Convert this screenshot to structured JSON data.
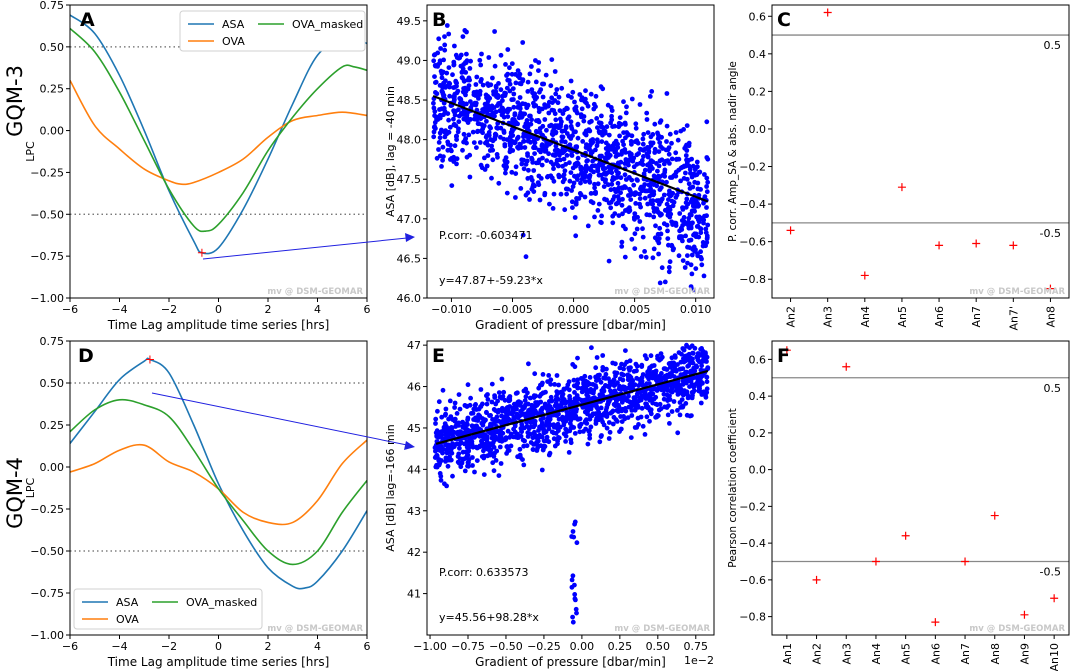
{
  "row_labels": [
    "GQM-3",
    "GQM-4"
  ],
  "watermark": "mv @ DSM-GEOMAR",
  "chart_data": [
    {
      "panel": "A",
      "type": "line",
      "xlabel": "Time Lag amplitude time series [hrs]",
      "ylabel": "LPC",
      "xlim": [
        -6,
        6
      ],
      "ylim": [
        -1.0,
        0.75
      ],
      "xticks": [
        -6,
        -4,
        -2,
        0,
        2,
        4,
        6
      ],
      "xtick_labels": [
        "−6",
        "−4",
        "−2",
        "0",
        "2",
        "4",
        "6"
      ],
      "yticks": [
        -1.0,
        -0.75,
        -0.5,
        -0.25,
        0.0,
        0.25,
        0.5,
        0.75
      ],
      "ytick_labels": [
        "−1.00",
        "−0.75",
        "−0.50",
        "−0.25",
        "0.00",
        "0.25",
        "0.50",
        "0.75"
      ],
      "hlines": [
        0.5,
        -0.5
      ],
      "legend": {
        "position": "top-right",
        "ncol": 2
      },
      "marker": {
        "x": -0.67,
        "y": -0.73
      },
      "series": [
        {
          "name": "ASA",
          "color": "#1f77b4",
          "x": [
            -6,
            -5,
            -4,
            -3,
            -2,
            -1,
            -0.67,
            0,
            1,
            2,
            3,
            4,
            5,
            5.5,
            6
          ],
          "y": [
            0.69,
            0.58,
            0.33,
            0.0,
            -0.36,
            -0.66,
            -0.73,
            -0.7,
            -0.47,
            -0.17,
            0.16,
            0.45,
            0.54,
            0.55,
            0.52
          ]
        },
        {
          "name": "OVA",
          "color": "#ff7f0e",
          "x": [
            -6,
            -5,
            -4,
            -3,
            -2,
            -1.5,
            -1,
            0,
            1,
            2,
            3,
            4,
            5,
            6
          ],
          "y": [
            0.3,
            0.03,
            -0.11,
            -0.23,
            -0.3,
            -0.32,
            -0.31,
            -0.25,
            -0.17,
            -0.04,
            0.06,
            0.09,
            0.11,
            0.09
          ]
        },
        {
          "name": "OVA_masked",
          "color": "#2ca02c",
          "x": [
            -6,
            -5,
            -4,
            -3,
            -2,
            -1,
            -0.5,
            0,
            1,
            2,
            3,
            4,
            5,
            5.5,
            6
          ],
          "y": [
            0.61,
            0.47,
            0.23,
            -0.06,
            -0.35,
            -0.57,
            -0.6,
            -0.56,
            -0.37,
            -0.12,
            0.08,
            0.25,
            0.38,
            0.38,
            0.36
          ]
        }
      ]
    },
    {
      "panel": "B",
      "type": "scatter",
      "xlabel": "Gradient of pressure [dbar/min]",
      "ylabel": "ASA [dB], lag = -40 min",
      "xlim": [
        -0.012,
        0.0115
      ],
      "ylim": [
        46.0,
        49.7
      ],
      "xticks": [
        -0.01,
        -0.005,
        0.0,
        0.005,
        0.01
      ],
      "xtick_labels": [
        "−0.010",
        "−0.005",
        "0.000",
        "0.005",
        "0.010"
      ],
      "yticks": [
        46.0,
        46.5,
        47.0,
        47.5,
        48.0,
        48.5,
        49.0,
        49.5
      ],
      "ytick_labels": [
        "46.0",
        "46.5",
        "47.0",
        "47.5",
        "48.0",
        "48.5",
        "49.0",
        "49.5"
      ],
      "point_color": "#0000ff",
      "fit": {
        "intercept": 47.87,
        "slope": -59.23,
        "x": [
          -0.0115,
          0.011
        ],
        "color": "#000000"
      },
      "annotations": [
        "P.corr: -0.603471",
        "y=47.87+-59.23*x"
      ]
    },
    {
      "panel": "C",
      "type": "scatter",
      "xlabel": "",
      "ylabel": "P. corr. Amp_SA & abs. nadir angle",
      "categories": [
        "An2",
        "An3",
        "An4",
        "An5",
        "An6",
        "An7",
        "An7'",
        "An8"
      ],
      "values": [
        -0.54,
        0.62,
        -0.78,
        -0.31,
        -0.62,
        -0.61,
        -0.62,
        -0.85
      ],
      "ylim": [
        -0.9,
        0.66
      ],
      "yticks": [
        -0.8,
        -0.6,
        -0.4,
        -0.2,
        0.0,
        0.2,
        0.4,
        0.6
      ],
      "ytick_labels": [
        "−0.8",
        "−0.6",
        "−0.4",
        "−0.2",
        "0.0",
        "0.2",
        "0.4",
        "0.6"
      ],
      "hlines": [
        0.5,
        -0.5
      ],
      "hline_labels": [
        "0.5",
        "-0.5"
      ],
      "marker_color": "#ff0000"
    },
    {
      "panel": "D",
      "type": "line",
      "xlabel": "Time Lag amplitude time series [hrs]",
      "ylabel": "LPC",
      "xlim": [
        -6,
        6
      ],
      "ylim": [
        -1.0,
        0.75
      ],
      "xticks": [
        -6,
        -4,
        -2,
        0,
        2,
        4,
        6
      ],
      "xtick_labels": [
        "−6",
        "−4",
        "−2",
        "0",
        "2",
        "4",
        "6"
      ],
      "yticks": [
        -1.0,
        -0.75,
        -0.5,
        -0.25,
        0.0,
        0.25,
        0.5,
        0.75
      ],
      "ytick_labels": [
        "−1.00",
        "−0.75",
        "−0.50",
        "−0.25",
        "0.00",
        "0.25",
        "0.50",
        "0.75"
      ],
      "hlines": [
        0.5,
        -0.5
      ],
      "legend": {
        "position": "bottom-left",
        "ncol": 2
      },
      "marker": {
        "x": -2.77,
        "y": 0.64
      },
      "series": [
        {
          "name": "ASA",
          "color": "#1f77b4",
          "x": [
            -6,
            -5,
            -4,
            -3,
            -2.77,
            -2,
            -1,
            0,
            1,
            2,
            3,
            3.5,
            4,
            5,
            6
          ],
          "y": [
            0.14,
            0.33,
            0.52,
            0.63,
            0.64,
            0.56,
            0.25,
            -0.1,
            -0.38,
            -0.6,
            -0.71,
            -0.72,
            -0.68,
            -0.5,
            -0.26
          ]
        },
        {
          "name": "OVA",
          "color": "#ff7f0e",
          "x": [
            -6,
            -5,
            -4,
            -3,
            -2,
            -1,
            0,
            1,
            2,
            3,
            4,
            5,
            6
          ],
          "y": [
            -0.03,
            0.02,
            0.1,
            0.13,
            0.03,
            -0.03,
            -0.13,
            -0.27,
            -0.33,
            -0.33,
            -0.2,
            0.02,
            0.16
          ]
        },
        {
          "name": "OVA_masked",
          "color": "#2ca02c",
          "x": [
            -6,
            -5,
            -4,
            -3,
            -2,
            -1,
            0,
            1,
            2,
            3,
            4,
            5,
            6
          ],
          "y": [
            0.21,
            0.34,
            0.4,
            0.37,
            0.3,
            0.1,
            -0.13,
            -0.32,
            -0.5,
            -0.58,
            -0.5,
            -0.27,
            -0.08
          ]
        }
      ]
    },
    {
      "panel": "E",
      "type": "scatter",
      "xlabel": "Gradient of pressure [dbar/min]",
      "ylabel": "ASA [dB] lag=-166 min",
      "x_offset_label": "1e−2",
      "xlim": [
        -1.02,
        0.87
      ],
      "ylim": [
        40.0,
        47.1
      ],
      "xticks": [
        -1.0,
        -0.75,
        -0.5,
        -0.25,
        0.0,
        0.25,
        0.5,
        0.75
      ],
      "xtick_labels": [
        "−1.00",
        "−0.75",
        "−0.50",
        "−0.25",
        "0.00",
        "0.25",
        "0.50",
        "0.75"
      ],
      "yticks": [
        41,
        42,
        43,
        44,
        45,
        46,
        47
      ],
      "ytick_labels": [
        "41",
        "42",
        "43",
        "44",
        "45",
        "46",
        "47"
      ],
      "point_color": "#0000ff",
      "fit": {
        "intercept": 45.56,
        "slope": 98.28,
        "x_scale": 0.01,
        "x": [
          -0.96,
          0.83
        ],
        "color": "#000000"
      },
      "annotations": [
        "P.corr: 0.633573",
        "y=45.56+98.28*x"
      ]
    },
    {
      "panel": "F",
      "type": "scatter",
      "xlabel": "",
      "ylabel": "Pearson correlation coefficient",
      "categories": [
        "An1",
        "An2",
        "An3",
        "An4",
        "An5",
        "An6",
        "An7",
        "An8",
        "An9",
        "An10"
      ],
      "values": [
        0.65,
        -0.6,
        0.56,
        -0.5,
        -0.36,
        -0.83,
        -0.5,
        -0.25,
        -0.79,
        -0.7
      ],
      "ylim": [
        -0.9,
        0.7
      ],
      "yticks": [
        -0.8,
        -0.6,
        -0.4,
        -0.2,
        0.0,
        0.2,
        0.4,
        0.6
      ],
      "ytick_labels": [
        "−0.8",
        "−0.6",
        "−0.4",
        "−0.2",
        "0.0",
        "0.2",
        "0.4",
        "0.6"
      ],
      "hlines": [
        0.5,
        -0.5
      ],
      "hline_labels": [
        "0.5",
        "-0.5"
      ],
      "marker_color": "#ff0000"
    }
  ]
}
